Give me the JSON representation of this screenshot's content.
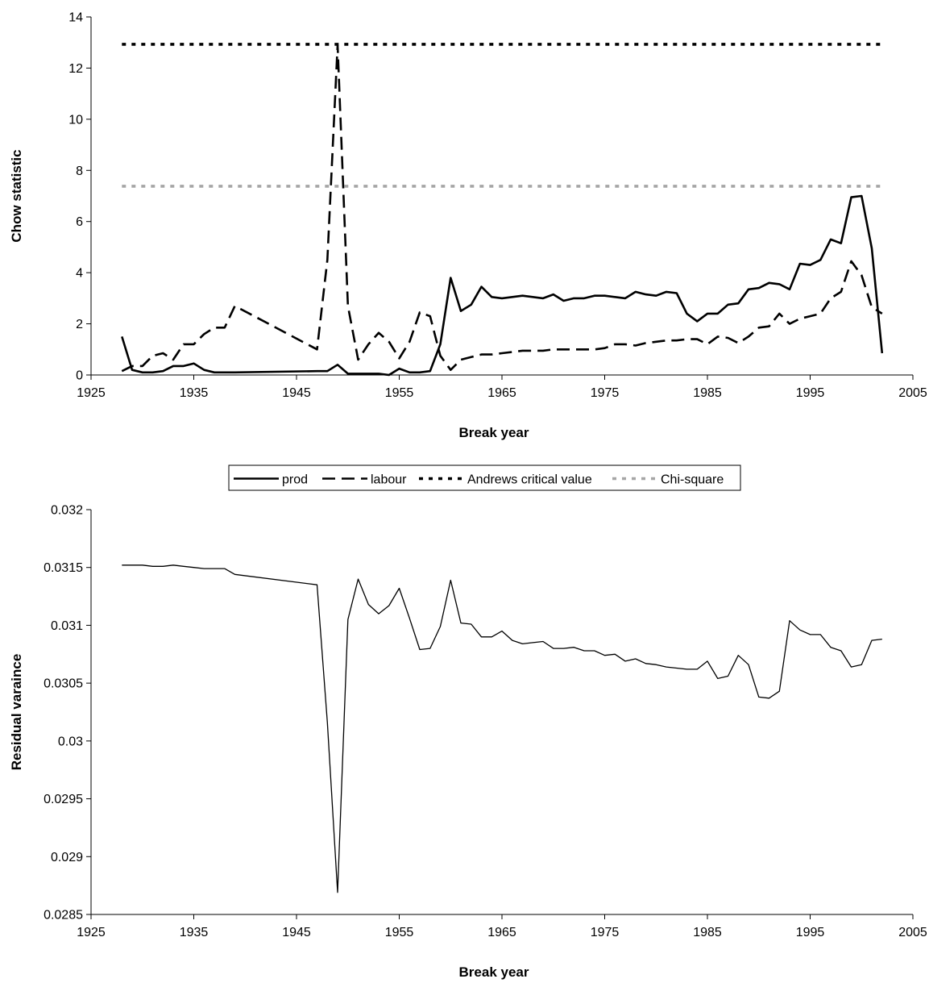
{
  "chart_data": [
    {
      "type": "line",
      "xlabel": "Break year",
      "ylabel": "Chow statistic",
      "xlim": [
        1925,
        2005
      ],
      "ylim": [
        0,
        14
      ],
      "xticks": [
        1925,
        1935,
        1945,
        1955,
        1965,
        1975,
        1985,
        1995,
        2005
      ],
      "yticks": [
        0,
        2,
        4,
        6,
        8,
        10,
        12,
        14
      ],
      "legend": {
        "position": "bottom",
        "entries": [
          "prod",
          "labour",
          "Andrews critical value",
          "Chi-square"
        ]
      },
      "series": [
        {
          "name": "prod",
          "style": "solid",
          "color": "#000000",
          "x": [
            1928,
            1929,
            1930,
            1931,
            1932,
            1933,
            1934,
            1935,
            1936,
            1937,
            1938,
            1939,
            1947,
            1948,
            1949,
            1950,
            1951,
            1952,
            1953,
            1954,
            1955,
            1956,
            1957,
            1958,
            1959,
            1960,
            1961,
            1962,
            1963,
            1964,
            1965,
            1966,
            1967,
            1968,
            1969,
            1970,
            1971,
            1972,
            1973,
            1974,
            1975,
            1976,
            1977,
            1978,
            1979,
            1980,
            1981,
            1982,
            1983,
            1984,
            1985,
            1986,
            1987,
            1988,
            1989,
            1990,
            1991,
            1992,
            1993,
            1994,
            1995,
            1996,
            1997,
            1998,
            1999,
            2000,
            2001,
            2002
          ],
          "values": [
            1.5,
            0.2,
            0.1,
            0.1,
            0.15,
            0.35,
            0.35,
            0.45,
            0.2,
            0.1,
            0.1,
            0.1,
            0.15,
            0.15,
            0.4,
            0.05,
            0.05,
            0.05,
            0.05,
            0.0,
            0.25,
            0.1,
            0.1,
            0.15,
            1.2,
            3.8,
            2.5,
            2.75,
            3.45,
            3.05,
            3.0,
            3.05,
            3.1,
            3.05,
            3.0,
            3.15,
            2.9,
            3.0,
            3.0,
            3.1,
            3.1,
            3.05,
            3.0,
            3.25,
            3.15,
            3.1,
            3.25,
            3.2,
            2.4,
            2.1,
            2.4,
            2.4,
            2.75,
            2.8,
            3.35,
            3.4,
            3.6,
            3.55,
            3.35,
            4.35,
            4.3,
            4.5,
            5.3,
            5.15,
            6.95,
            7.0,
            4.95,
            0.85
          ]
        },
        {
          "name": "labour",
          "style": "dashed",
          "color": "#000000",
          "x": [
            1928,
            1929,
            1930,
            1931,
            1932,
            1933,
            1934,
            1935,
            1936,
            1937,
            1938,
            1939,
            1947,
            1948,
            1949,
            1950,
            1951,
            1952,
            1953,
            1954,
            1955,
            1956,
            1957,
            1958,
            1959,
            1960,
            1961,
            1962,
            1963,
            1964,
            1965,
            1966,
            1967,
            1968,
            1969,
            1970,
            1971,
            1972,
            1973,
            1974,
            1975,
            1976,
            1977,
            1978,
            1979,
            1980,
            1981,
            1982,
            1983,
            1984,
            1985,
            1986,
            1987,
            1988,
            1989,
            1990,
            1991,
            1992,
            1993,
            1994,
            1995,
            1996,
            1997,
            1998,
            1999,
            2000,
            2001,
            2002
          ],
          "values": [
            0.15,
            0.35,
            0.35,
            0.75,
            0.85,
            0.6,
            1.2,
            1.2,
            1.6,
            1.85,
            1.85,
            2.7,
            1.0,
            4.5,
            12.9,
            2.7,
            0.6,
            1.2,
            1.65,
            1.3,
            0.65,
            1.3,
            2.45,
            2.3,
            0.75,
            0.2,
            0.6,
            0.7,
            0.8,
            0.8,
            0.85,
            0.9,
            0.95,
            0.95,
            0.95,
            1.0,
            1.0,
            1.0,
            1.0,
            1.0,
            1.05,
            1.2,
            1.2,
            1.15,
            1.25,
            1.3,
            1.35,
            1.35,
            1.4,
            1.4,
            1.2,
            1.5,
            1.45,
            1.25,
            1.5,
            1.85,
            1.9,
            2.4,
            2.0,
            2.2,
            2.3,
            2.4,
            3.0,
            3.25,
            4.45,
            3.9,
            2.65,
            2.4
          ]
        },
        {
          "name": "Andrews critical value",
          "style": "dotted",
          "color": "#000000",
          "x": [
            1928,
            2002
          ],
          "values": [
            12.93,
            12.93
          ]
        },
        {
          "name": "Chi-square",
          "style": "dotted",
          "color": "#a6a6a6",
          "x": [
            1928,
            2002
          ],
          "values": [
            7.38,
            7.38
          ]
        }
      ]
    },
    {
      "type": "line",
      "xlabel": "Break year",
      "ylabel": "Residual varaince",
      "xlim": [
        1925,
        2005
      ],
      "ylim": [
        0.0285,
        0.032
      ],
      "xticks": [
        1925,
        1935,
        1945,
        1955,
        1965,
        1975,
        1985,
        1995,
        2005
      ],
      "yticks": [
        0.0285,
        0.029,
        0.0295,
        0.03,
        0.0305,
        0.031,
        0.0315,
        0.032
      ],
      "yticklabels": [
        "0.0285",
        "0.029",
        "0.0295",
        "0.03",
        "0.0305",
        "0.031",
        "0.0315",
        "0.032"
      ],
      "series": [
        {
          "style": "solid",
          "color": "#000000",
          "x": [
            1928,
            1929,
            1930,
            1931,
            1932,
            1933,
            1934,
            1935,
            1936,
            1937,
            1938,
            1939,
            1947,
            1948,
            1949,
            1950,
            1951,
            1952,
            1953,
            1954,
            1955,
            1956,
            1957,
            1958,
            1959,
            1960,
            1961,
            1962,
            1963,
            1964,
            1965,
            1966,
            1967,
            1968,
            1969,
            1970,
            1971,
            1972,
            1973,
            1974,
            1975,
            1976,
            1977,
            1978,
            1979,
            1980,
            1981,
            1982,
            1983,
            1984,
            1985,
            1986,
            1987,
            1988,
            1989,
            1990,
            1991,
            1992,
            1993,
            1994,
            1995,
            1996,
            1997,
            1998,
            1999,
            2000,
            2001,
            2002
          ],
          "values": [
            0.03152,
            0.03152,
            0.03152,
            0.03151,
            0.03151,
            0.03152,
            0.03151,
            0.0315,
            0.03149,
            0.03149,
            0.03149,
            0.03144,
            0.03135,
            0.03016,
            0.02869,
            0.03105,
            0.0314,
            0.03118,
            0.0311,
            0.03117,
            0.03132,
            0.03106,
            0.03079,
            0.0308,
            0.03099,
            0.03139,
            0.03102,
            0.03101,
            0.0309,
            0.0309,
            0.03095,
            0.03087,
            0.03084,
            0.03085,
            0.03086,
            0.0308,
            0.0308,
            0.03081,
            0.03078,
            0.03078,
            0.03074,
            0.03075,
            0.03069,
            0.03071,
            0.03067,
            0.03066,
            0.03064,
            0.03063,
            0.03062,
            0.03062,
            0.03069,
            0.03054,
            0.03056,
            0.03074,
            0.03066,
            0.03038,
            0.03037,
            0.03043,
            0.03104,
            0.03096,
            0.03092,
            0.03092,
            0.03081,
            0.03078,
            0.03064,
            0.03066,
            0.03087,
            0.03088
          ]
        }
      ]
    }
  ]
}
